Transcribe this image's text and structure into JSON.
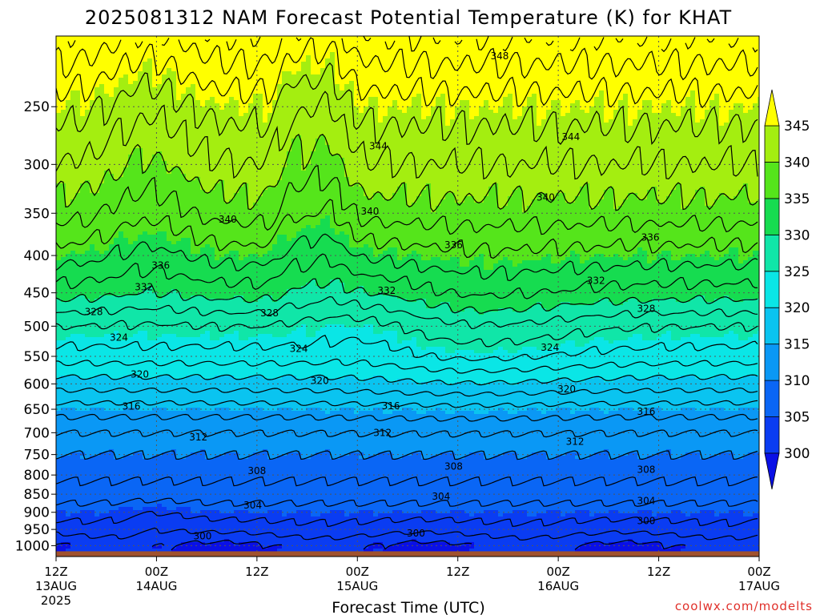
{
  "chart_data": {
    "type": "heatmap",
    "title": "2025081312 NAM Forecast Potential Temperature (K) for KHAT",
    "xlabel": "Forecast Time (UTC)",
    "y_axis": {
      "quantity": "pressure",
      "scale": "log",
      "inverted": true,
      "ylim": [
        1035,
        200
      ],
      "ticks": [
        250,
        300,
        350,
        400,
        450,
        500,
        550,
        600,
        650,
        700,
        750,
        800,
        850,
        900,
        950,
        1000
      ]
    },
    "x_axis": {
      "xlim_hours": [
        0,
        84
      ],
      "ticks": [
        {
          "hour": 0,
          "line1": "12Z",
          "line2": "13AUG",
          "line3": "2025"
        },
        {
          "hour": 12,
          "line1": "00Z",
          "line2": "14AUG",
          "line3": ""
        },
        {
          "hour": 24,
          "line1": "12Z",
          "line2": "",
          "line3": ""
        },
        {
          "hour": 36,
          "line1": "00Z",
          "line2": "15AUG",
          "line3": ""
        },
        {
          "hour": 48,
          "line1": "12Z",
          "line2": "",
          "line3": ""
        },
        {
          "hour": 60,
          "line1": "00Z",
          "line2": "16AUG",
          "line3": ""
        },
        {
          "hour": 72,
          "line1": "12Z",
          "line2": "",
          "line3": ""
        },
        {
          "hour": 84,
          "line1": "00Z",
          "line2": "17AUG",
          "line3": ""
        }
      ]
    },
    "grid": true,
    "legend": "colorbar-right",
    "colorbar": {
      "ticks": [
        300,
        305,
        310,
        315,
        320,
        325,
        330,
        335,
        340,
        345
      ],
      "min": 300,
      "max": 345,
      "extend": "both"
    },
    "color_levels": [
      {
        "min": 295,
        "max": 300,
        "color": "#0a10e6"
      },
      {
        "min": 300,
        "max": 305,
        "color": "#0a3cf2"
      },
      {
        "min": 305,
        "max": 310,
        "color": "#0a66f5"
      },
      {
        "min": 310,
        "max": 315,
        "color": "#0a98f5"
      },
      {
        "min": 315,
        "max": 320,
        "color": "#0ac4f0"
      },
      {
        "min": 320,
        "max": 325,
        "color": "#0ae6e6"
      },
      {
        "min": 325,
        "max": 330,
        "color": "#10e6a8"
      },
      {
        "min": 330,
        "max": 335,
        "color": "#16dc50"
      },
      {
        "min": 335,
        "max": 340,
        "color": "#55e51b"
      },
      {
        "min": 340,
        "max": 345,
        "color": "#a4ee10"
      },
      {
        "min": 345,
        "max": 355,
        "color": "#ffff00"
      }
    ],
    "contour_interval": 2,
    "mean_profile": [
      {
        "p": 1000,
        "theta": 300
      },
      {
        "p": 950,
        "theta": 303
      },
      {
        "p": 900,
        "theta": 305
      },
      {
        "p": 850,
        "theta": 307
      },
      {
        "p": 800,
        "theta": 308.5
      },
      {
        "p": 750,
        "theta": 310
      },
      {
        "p": 700,
        "theta": 312
      },
      {
        "p": 650,
        "theta": 315
      },
      {
        "p": 600,
        "theta": 319
      },
      {
        "p": 550,
        "theta": 323
      },
      {
        "p": 500,
        "theta": 326
      },
      {
        "p": 450,
        "theta": 331
      },
      {
        "p": 400,
        "theta": 335
      },
      {
        "p": 350,
        "theta": 339
      },
      {
        "p": 300,
        "theta": 342
      },
      {
        "p": 250,
        "theta": 345
      },
      {
        "p": 200,
        "theta": 350
      }
    ],
    "contour_labels": [
      {
        "hour": 53,
        "p": 213,
        "value": "348"
      },
      {
        "hour": 38.5,
        "p": 283,
        "value": "344"
      },
      {
        "hour": 61.5,
        "p": 275,
        "value": "344"
      },
      {
        "hour": 58.5,
        "p": 333,
        "value": "340"
      },
      {
        "hour": 20.5,
        "p": 357,
        "value": "340"
      },
      {
        "hour": 37.5,
        "p": 348,
        "value": "340"
      },
      {
        "hour": 47.5,
        "p": 387,
        "value": "336"
      },
      {
        "hour": 71,
        "p": 378,
        "value": "336"
      },
      {
        "hour": 12.5,
        "p": 413,
        "value": "336"
      },
      {
        "hour": 10.5,
        "p": 442,
        "value": "332"
      },
      {
        "hour": 39.5,
        "p": 447,
        "value": "332"
      },
      {
        "hour": 64.5,
        "p": 433,
        "value": "332"
      },
      {
        "hour": 4.5,
        "p": 478,
        "value": "328"
      },
      {
        "hour": 25.5,
        "p": 480,
        "value": "328"
      },
      {
        "hour": 70.5,
        "p": 473,
        "value": "328"
      },
      {
        "hour": 7.5,
        "p": 518,
        "value": "324"
      },
      {
        "hour": 29,
        "p": 537,
        "value": "324"
      },
      {
        "hour": 59,
        "p": 535,
        "value": "324"
      },
      {
        "hour": 10,
        "p": 582,
        "value": "320"
      },
      {
        "hour": 31.5,
        "p": 594,
        "value": "320"
      },
      {
        "hour": 61,
        "p": 610,
        "value": "320"
      },
      {
        "hour": 9,
        "p": 644,
        "value": "316"
      },
      {
        "hour": 40,
        "p": 643,
        "value": "316"
      },
      {
        "hour": 70.5,
        "p": 655,
        "value": "316"
      },
      {
        "hour": 17,
        "p": 710,
        "value": "312"
      },
      {
        "hour": 39,
        "p": 700,
        "value": "312"
      },
      {
        "hour": 62,
        "p": 720,
        "value": "312"
      },
      {
        "hour": 24,
        "p": 790,
        "value": "308"
      },
      {
        "hour": 47.5,
        "p": 779,
        "value": "308"
      },
      {
        "hour": 70.5,
        "p": 787,
        "value": "308"
      },
      {
        "hour": 23.5,
        "p": 880,
        "value": "304"
      },
      {
        "hour": 46,
        "p": 856,
        "value": "304"
      },
      {
        "hour": 70.5,
        "p": 868,
        "value": "304"
      },
      {
        "hour": 17.5,
        "p": 970,
        "value": "300"
      },
      {
        "hour": 43,
        "p": 962,
        "value": "300"
      },
      {
        "hour": 70.5,
        "p": 925,
        "value": "300"
      }
    ],
    "ground_color": "#a0522d"
  },
  "credit": "coolwx.com/modelts"
}
